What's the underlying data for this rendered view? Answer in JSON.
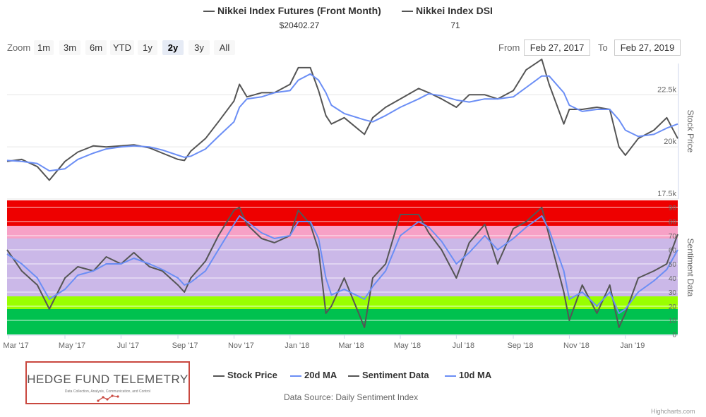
{
  "header": {
    "series1_label": "Nikkei Index Futures (Front Month)",
    "series1_value": "$20402.27",
    "series2_label": "Nikkei Index DSI",
    "series2_value": "71"
  },
  "zoom": {
    "label": "Zoom",
    "buttons": [
      "1m",
      "3m",
      "6m",
      "YTD",
      "1y",
      "2y",
      "3y",
      "All"
    ],
    "active": "2y"
  },
  "range": {
    "from_label": "From",
    "from_value": "Feb 27, 2017",
    "to_label": "To",
    "to_value": "Feb 27, 2019"
  },
  "legend": {
    "items": [
      {
        "label": "Stock Price",
        "color": "#555555"
      },
      {
        "label": "20d MA",
        "color": "#6b8ef5"
      },
      {
        "label": "Sentiment Data",
        "color": "#555555"
      },
      {
        "label": "10d MA",
        "color": "#6b8ef5"
      }
    ]
  },
  "logo": {
    "title": "HEDGE FUND TELEMETRY",
    "tagline": "Data Collection, Analysis, Communication, and Control"
  },
  "source": "Data Source: Daily Sentiment Index",
  "credits": "Highcharts.com",
  "colors": {
    "price": "#555555",
    "ma": "#6b8ef5",
    "band_red": "#ee0000",
    "band_pink": "#f7a1c6",
    "band_lavender": "#cbb8e8",
    "band_lime": "#99ff00",
    "band_green": "#00c14f"
  },
  "chart_data": [
    {
      "type": "line",
      "title": "",
      "ylabel": "Stock Price",
      "ylim": [
        17500,
        24000
      ],
      "yticks": [
        "17.5k",
        "20k",
        "22.5k"
      ],
      "x": [
        "2017-02-27",
        "2017-03-15",
        "2017-04-01",
        "2017-04-14",
        "2017-05-01",
        "2017-05-15",
        "2017-06-01",
        "2017-06-15",
        "2017-07-01",
        "2017-07-15",
        "2017-08-01",
        "2017-08-15",
        "2017-09-01",
        "2017-09-08",
        "2017-09-15",
        "2017-10-01",
        "2017-10-15",
        "2017-11-01",
        "2017-11-07",
        "2017-11-15",
        "2017-12-01",
        "2017-12-15",
        "2018-01-01",
        "2018-01-10",
        "2018-01-23",
        "2018-02-01",
        "2018-02-09",
        "2018-02-15",
        "2018-03-01",
        "2018-03-23",
        "2018-04-01",
        "2018-04-15",
        "2018-05-01",
        "2018-05-21",
        "2018-06-01",
        "2018-06-15",
        "2018-07-01",
        "2018-07-15",
        "2018-08-01",
        "2018-08-15",
        "2018-09-01",
        "2018-09-15",
        "2018-10-02",
        "2018-10-10",
        "2018-10-26",
        "2018-11-01",
        "2018-11-15",
        "2018-12-01",
        "2018-12-15",
        "2018-12-25",
        "2019-01-01",
        "2019-01-15",
        "2019-02-01",
        "2019-02-15",
        "2019-02-27"
      ],
      "series": [
        {
          "name": "Stock Price",
          "values": [
            19300,
            19400,
            19050,
            18400,
            19300,
            19750,
            20050,
            20000,
            20050,
            20100,
            19950,
            19700,
            19400,
            19350,
            19800,
            20400,
            21200,
            22200,
            23000,
            22400,
            22600,
            22600,
            23000,
            23800,
            23800,
            22700,
            21500,
            21100,
            21400,
            20600,
            21400,
            21900,
            22300,
            22800,
            22600,
            22300,
            21900,
            22500,
            22500,
            22300,
            22700,
            23700,
            24200,
            23000,
            21100,
            21800,
            21800,
            21900,
            21800,
            20000,
            19600,
            20400,
            20800,
            21400,
            20400
          ]
        },
        {
          "name": "20d MA",
          "values": [
            19350,
            19300,
            19200,
            18850,
            18950,
            19400,
            19700,
            19900,
            20000,
            20050,
            20000,
            19850,
            19600,
            19500,
            19550,
            19900,
            20500,
            21200,
            21900,
            22300,
            22400,
            22600,
            22700,
            23200,
            23500,
            23200,
            22600,
            22000,
            21600,
            21300,
            21200,
            21500,
            21900,
            22300,
            22550,
            22450,
            22250,
            22150,
            22300,
            22300,
            22400,
            22850,
            23400,
            23400,
            22600,
            22000,
            21700,
            21800,
            21800,
            21300,
            20800,
            20500,
            20600,
            20900,
            21100
          ]
        }
      ]
    },
    {
      "type": "line",
      "title": "",
      "ylabel": "Sentiment Data",
      "ylim": [
        0,
        95
      ],
      "yticks": [
        "0",
        "10",
        "20",
        "30",
        "40",
        "50",
        "60",
        "70",
        "80",
        "90"
      ],
      "bands": [
        {
          "from": 0,
          "to": 18,
          "color": "#00c14f"
        },
        {
          "from": 18,
          "to": 27,
          "color": "#99ff00"
        },
        {
          "from": 27,
          "to": 68,
          "color": "#cbb8e8"
        },
        {
          "from": 68,
          "to": 77,
          "color": "#f7a1c6"
        },
        {
          "from": 77,
          "to": 95,
          "color": "#ee0000"
        }
      ],
      "x": [
        "2017-02-27",
        "2017-03-15",
        "2017-04-01",
        "2017-04-14",
        "2017-05-01",
        "2017-05-15",
        "2017-06-01",
        "2017-06-15",
        "2017-07-01",
        "2017-07-15",
        "2017-08-01",
        "2017-08-15",
        "2017-09-01",
        "2017-09-08",
        "2017-09-15",
        "2017-10-01",
        "2017-10-15",
        "2017-11-01",
        "2017-11-07",
        "2017-11-15",
        "2017-12-01",
        "2017-12-15",
        "2018-01-01",
        "2018-01-10",
        "2018-01-23",
        "2018-02-01",
        "2018-02-09",
        "2018-02-15",
        "2018-03-01",
        "2018-03-23",
        "2018-04-01",
        "2018-04-15",
        "2018-05-01",
        "2018-05-21",
        "2018-06-01",
        "2018-06-15",
        "2018-07-01",
        "2018-07-15",
        "2018-08-01",
        "2018-08-15",
        "2018-09-01",
        "2018-09-15",
        "2018-10-02",
        "2018-10-10",
        "2018-10-26",
        "2018-11-01",
        "2018-11-15",
        "2018-12-01",
        "2018-12-15",
        "2018-12-25",
        "2019-01-01",
        "2019-01-15",
        "2019-02-01",
        "2019-02-15",
        "2019-02-27"
      ],
      "series": [
        {
          "name": "Sentiment Data",
          "values": [
            60,
            45,
            35,
            18,
            40,
            48,
            45,
            55,
            50,
            58,
            48,
            45,
            35,
            30,
            40,
            52,
            70,
            88,
            90,
            78,
            68,
            65,
            70,
            88,
            78,
            60,
            15,
            20,
            40,
            5,
            40,
            50,
            85,
            85,
            72,
            60,
            40,
            65,
            78,
            50,
            75,
            80,
            90,
            70,
            30,
            10,
            35,
            15,
            35,
            5,
            15,
            40,
            45,
            50,
            71
          ]
        },
        {
          "name": "10d MA",
          "values": [
            57,
            50,
            40,
            25,
            32,
            42,
            45,
            50,
            50,
            54,
            50,
            46,
            40,
            35,
            37,
            45,
            60,
            78,
            84,
            80,
            72,
            68,
            70,
            80,
            80,
            68,
            40,
            28,
            32,
            25,
            34,
            45,
            70,
            80,
            76,
            66,
            50,
            58,
            70,
            60,
            68,
            76,
            84,
            74,
            45,
            25,
            30,
            20,
            30,
            15,
            18,
            30,
            38,
            46,
            60
          ]
        }
      ]
    }
  ],
  "x_axis_labels": [
    "Mar '17",
    "May '17",
    "Jul '17",
    "Sep '17",
    "Nov '17",
    "Jan '18",
    "Mar '18",
    "May '18",
    "Jul '18",
    "Sep '18",
    "Nov '18",
    "Jan '19"
  ],
  "x_axis_label_dates": [
    "2017-03-01",
    "2017-05-01",
    "2017-07-01",
    "2017-09-01",
    "2017-11-01",
    "2018-01-01",
    "2018-03-01",
    "2018-05-01",
    "2018-07-01",
    "2018-09-01",
    "2018-11-01",
    "2019-01-01"
  ]
}
